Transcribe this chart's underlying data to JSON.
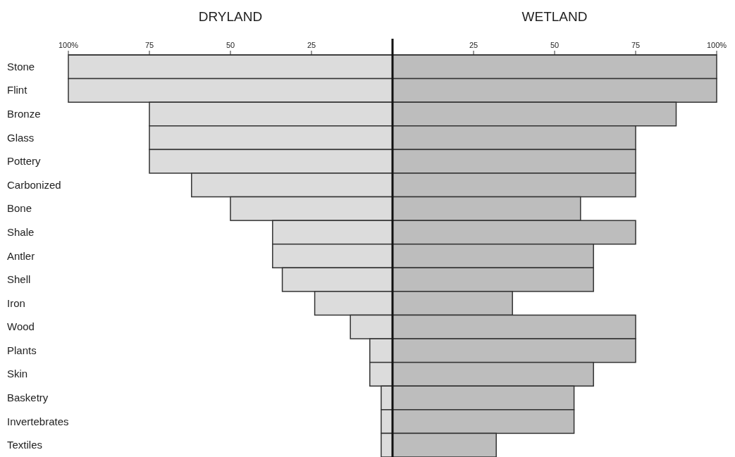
{
  "chart_data": [
    {
      "type": "bar",
      "orientation": "horizontal",
      "title": "DRYLAND",
      "categories": [
        "Stone",
        "Flint",
        "Bronze",
        "Glass",
        "Pottery",
        "Carbonized",
        "Bone",
        "Shale",
        "Antler",
        "Shell",
        "Iron",
        "Wood",
        "Plants",
        "Skin",
        "Basketry",
        "Invertebrates",
        "Textiles"
      ],
      "values": [
        100,
        100,
        75,
        75,
        75,
        62,
        50,
        37,
        37,
        34,
        24,
        13,
        7,
        7,
        3.5,
        3.5,
        3.5
      ],
      "color": "#dcdcdc",
      "xlim": [
        100,
        0
      ],
      "xticks": [
        {
          "value": 100,
          "label": "100%"
        },
        75,
        50,
        25
      ]
    },
    {
      "type": "bar",
      "orientation": "horizontal",
      "title": "WETLAND",
      "categories": [
        null,
        null,
        null,
        null,
        null,
        null,
        null,
        null,
        null,
        null,
        null,
        null,
        null,
        null,
        null,
        null,
        null
      ],
      "values": [
        100,
        100,
        87.5,
        75,
        75,
        75,
        58,
        75,
        62,
        62,
        37,
        75,
        75,
        62,
        56,
        56,
        32
      ],
      "color": "#bdbdbd",
      "xlim": [
        0,
        100
      ],
      "xticks": [
        25,
        50,
        75,
        {
          "value": 100,
          "label": "100%"
        }
      ],
      "tick_labels": "x"
    }
  ]
}
